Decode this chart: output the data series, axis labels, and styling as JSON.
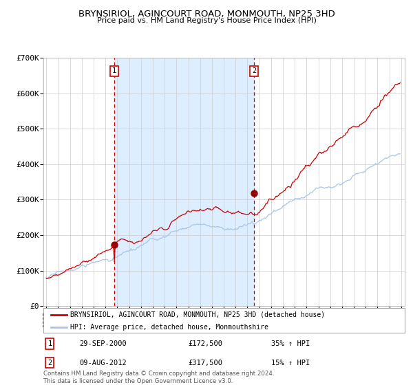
{
  "title": "BRYNSIRIOL, AGINCOURT ROAD, MONMOUTH, NP25 3HD",
  "subtitle": "Price paid vs. HM Land Registry's House Price Index (HPI)",
  "legend_line1": "BRYNSIRIOL, AGINCOURT ROAD, MONMOUTH, NP25 3HD (detached house)",
  "legend_line2": "HPI: Average price, detached house, Monmouthshire",
  "annotation1_label": "1",
  "annotation1_date": "29-SEP-2000",
  "annotation1_price": "£172,500",
  "annotation1_hpi": "35% ↑ HPI",
  "annotation2_label": "2",
  "annotation2_date": "09-AUG-2012",
  "annotation2_price": "£317,500",
  "annotation2_hpi": "15% ↑ HPI",
  "footer": "Contains HM Land Registry data © Crown copyright and database right 2024.\nThis data is licensed under the Open Government Licence v3.0.",
  "hpi_color": "#aac4e8",
  "price_color": "#cc0000",
  "dot_color": "#990000",
  "background_color": "#ffffff",
  "plot_bg_color": "#ffffff",
  "shaded_region_color": "#dceeff",
  "dashed_line_color": "#cc0000",
  "grid_color": "#cccccc",
  "year_start": 1995,
  "year_end": 2025,
  "ylim_max": 700000,
  "sale1_year": 2000.75,
  "sale1_value": 172500,
  "sale2_year": 2012.58,
  "sale2_value": 317500
}
